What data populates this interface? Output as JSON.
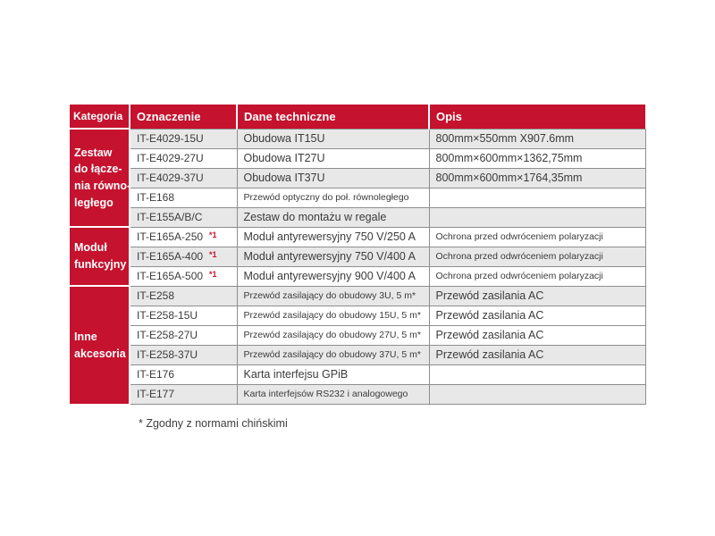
{
  "colors": {
    "accent_red": "#C5122E",
    "row_gray": "#E8E8E8",
    "row_white": "#FFFFFF",
    "border_gray": "#8E8E8E",
    "header_text": "#FFFFFF",
    "body_text": "#3B3B3B"
  },
  "table": {
    "headers": [
      "Kategoria",
      "Oznaczenie",
      "Dane techniczne",
      "Opis"
    ],
    "categories": [
      {
        "label_lines": [
          "Zestaw",
          "do łącze-",
          "nia równo-",
          "ległego"
        ],
        "rowspan": 5
      },
      {
        "label_lines": [
          "Moduł",
          "funkcyjny"
        ],
        "rowspan": 3
      },
      {
        "label_lines": [
          "Inne",
          "akcesoria"
        ],
        "rowspan": 6
      }
    ],
    "rows": [
      {
        "oznaczenie": "IT-E4029-15U",
        "ref": "",
        "dane": "Obudowa IT15U",
        "opis": "800mm×550mm X907.6mm",
        "shade": "gray",
        "dane_size": "lg",
        "opis_size": "md"
      },
      {
        "oznaczenie": "IT-E4029-27U",
        "ref": "",
        "dane": "Obudowa IT27U",
        "opis": "800mm×600mm×1362,75mm",
        "shade": "white",
        "dane_size": "lg",
        "opis_size": "md"
      },
      {
        "oznaczenie": "IT-E4029-37U",
        "ref": "",
        "dane": "Obudowa IT37U",
        "opis": "800mm×600mm×1764,35mm",
        "shade": "gray",
        "dane_size": "lg",
        "opis_size": "md"
      },
      {
        "oznaczenie": "IT-E168",
        "ref": "",
        "dane": "Przewód optyczny do poł. równoległego",
        "opis": "",
        "shade": "white",
        "dane_size": "sm",
        "opis_size": "md"
      },
      {
        "oznaczenie": "IT-E155A/B/C",
        "ref": "",
        "dane": "Zestaw do montażu w regale",
        "opis": "",
        "shade": "gray",
        "dane_size": "lg",
        "opis_size": "md"
      },
      {
        "oznaczenie": "IT-E165A-250",
        "ref": "*1",
        "dane": "Moduł antyrewersyjny 750 V/250 A",
        "opis": "Ochrona przed odwróceniem polaryzacji",
        "shade": "white",
        "dane_size": "lg",
        "opis_size": "sm"
      },
      {
        "oznaczenie": "IT-E165A-400",
        "ref": "*1",
        "dane": "Moduł antyrewersyjny 750 V/400 A",
        "opis": "Ochrona przed odwróceniem polaryzacji",
        "shade": "gray",
        "dane_size": "lg",
        "opis_size": "sm"
      },
      {
        "oznaczenie": "IT-E165A-500",
        "ref": "*1",
        "dane": "Moduł antyrewersyjny 900 V/400 A",
        "opis": "Ochrona przed odwróceniem polaryzacji",
        "shade": "white",
        "dane_size": "lg",
        "opis_size": "sm"
      },
      {
        "oznaczenie": "IT-E258",
        "ref": "",
        "dane": "Przewód zasilający do obudowy 3U, 5 m*",
        "opis": "Przewód zasilania AC",
        "shade": "gray",
        "dane_size": "sm",
        "opis_size": "md"
      },
      {
        "oznaczenie": "IT-E258-15U",
        "ref": "",
        "dane": "Przewód zasilający do obudowy 15U, 5 m*",
        "opis": "Przewód zasilania AC",
        "shade": "white",
        "dane_size": "sm",
        "opis_size": "md"
      },
      {
        "oznaczenie": "IT-E258-27U",
        "ref": "",
        "dane": "Przewód zasilający do obudowy 27U, 5 m*",
        "opis": "Przewód zasilania AC",
        "shade": "white",
        "dane_size": "sm",
        "opis_size": "md"
      },
      {
        "oznaczenie": "IT-E258-37U",
        "ref": "",
        "dane": "Przewód zasilający do obudowy 37U, 5 m*",
        "opis": "Przewód zasilania AC",
        "shade": "gray",
        "dane_size": "sm",
        "opis_size": "md"
      },
      {
        "oznaczenie": "IT-E176",
        "ref": "",
        "dane": "Karta interfejsu GPiB",
        "opis": "",
        "shade": "white",
        "dane_size": "lg",
        "opis_size": "md"
      },
      {
        "oznaczenie": "IT-E177",
        "ref": "",
        "dane": "Karta interfejsów RS232 i analogowego",
        "opis": "",
        "shade": "gray",
        "dane_size": "sm",
        "opis_size": "md"
      }
    ]
  },
  "footnote": "* Zgodny z normami chińskimi"
}
